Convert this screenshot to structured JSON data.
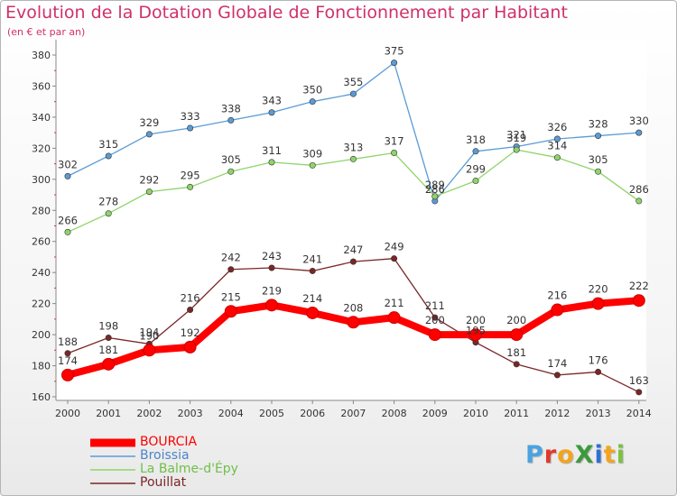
{
  "title": "Evolution de la Dotation Globale de Fonctionnement par Habitant",
  "subtitle": "(en € et par an)",
  "brand": {
    "text": "ProXiti",
    "letter_colors": [
      "#4aa3e0",
      "#e0392b",
      "#f2a51c",
      "#3c9a3c",
      "#2f6fd1",
      "#f2a51c",
      "#7ac143"
    ]
  },
  "chart_data": {
    "type": "line",
    "x": [
      "2000",
      "2001",
      "2002",
      "2003",
      "2004",
      "2005",
      "2006",
      "2007",
      "2008",
      "2009",
      "2010",
      "2011",
      "2012",
      "2013",
      "2014"
    ],
    "ylim": [
      160,
      380
    ],
    "yticks": [
      "160",
      "180",
      "200",
      "220",
      "240",
      "260",
      "280",
      "300",
      "320",
      "340",
      "360",
      "380"
    ],
    "grid": false,
    "legend_position": "bottom-left",
    "series": [
      {
        "name": "BOURCIA",
        "color": "#ff0000",
        "bold": true,
        "values": [
          174,
          181,
          190,
          192,
          215,
          219,
          214,
          208,
          211,
          200,
          200,
          200,
          216,
          220,
          222
        ],
        "labels": [
          "174",
          "181",
          "190",
          "192",
          "215",
          "219",
          "214",
          "208",
          "211",
          "200",
          "200",
          "200",
          "216",
          "220",
          "222"
        ]
      },
      {
        "name": "Broissia",
        "color": "#5b9bd5",
        "bold": false,
        "values": [
          302,
          315,
          329,
          333,
          338,
          343,
          350,
          355,
          375,
          286,
          318,
          321,
          326,
          328,
          330
        ],
        "labels": [
          "302",
          "315",
          "329",
          "333",
          "338",
          "343",
          "350",
          "355",
          "375",
          "286",
          "318",
          "321",
          "326",
          "328",
          "330"
        ]
      },
      {
        "name": "La Balme-d'Épy",
        "color": "#8fd46a",
        "bold": false,
        "values": [
          266,
          278,
          292,
          295,
          305,
          311,
          309,
          313,
          317,
          289,
          299,
          319,
          314,
          305,
          286
        ],
        "labels": [
          "266",
          "278",
          "292",
          "295",
          "305",
          "311",
          "309",
          "313",
          "317",
          "289",
          "299",
          "319",
          "314",
          "305",
          "286"
        ]
      },
      {
        "name": "Pouillat",
        "color": "#7b2626",
        "bold": false,
        "values": [
          188,
          198,
          194,
          216,
          242,
          243,
          241,
          247,
          249,
          211,
          195,
          181,
          174,
          176,
          163
        ],
        "labels": [
          "188",
          "198",
          "194",
          "216",
          "242",
          "243",
          "241",
          "247",
          "249",
          "211",
          "195",
          "181",
          "174",
          "176",
          "163"
        ]
      }
    ]
  }
}
